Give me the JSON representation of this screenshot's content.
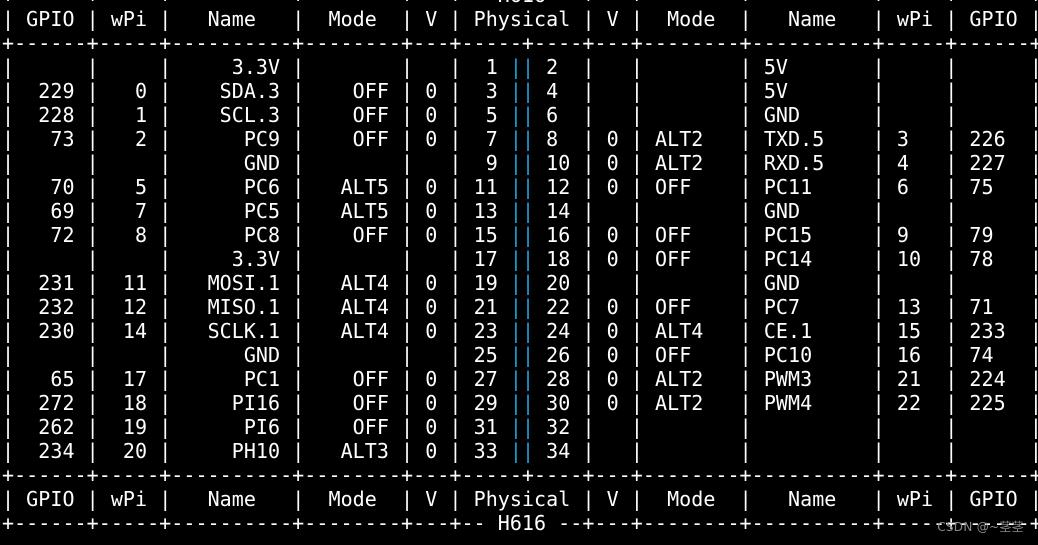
{
  "board": "H616",
  "border": "+------+-----+----------+--------+---+",
  "header": {
    "left": [
      "GPIO",
      "wPi",
      "Name",
      "Mode",
      "V"
    ],
    "physical": "Physical",
    "right": [
      "V",
      "Mode",
      "Name",
      "wPi",
      "GPIO"
    ]
  },
  "rows": [
    {
      "l_gpio": "",
      "l_wpi": "",
      "l_name": "3.3V",
      "l_mode": "",
      "l_v": "",
      "l_pin": "1",
      "r_pin": "2",
      "r_v": "",
      "r_mode": "",
      "r_name": "5V",
      "r_wpi": "",
      "r_gpio": ""
    },
    {
      "l_gpio": "229",
      "l_wpi": "0",
      "l_name": "SDA.3",
      "l_mode": "OFF",
      "l_v": "0",
      "l_pin": "3",
      "r_pin": "4",
      "r_v": "",
      "r_mode": "",
      "r_name": "5V",
      "r_wpi": "",
      "r_gpio": ""
    },
    {
      "l_gpio": "228",
      "l_wpi": "1",
      "l_name": "SCL.3",
      "l_mode": "OFF",
      "l_v": "0",
      "l_pin": "5",
      "r_pin": "6",
      "r_v": "",
      "r_mode": "",
      "r_name": "GND",
      "r_wpi": "",
      "r_gpio": ""
    },
    {
      "l_gpio": "73",
      "l_wpi": "2",
      "l_name": "PC9",
      "l_mode": "OFF",
      "l_v": "0",
      "l_pin": "7",
      "r_pin": "8",
      "r_v": "0",
      "r_mode": "ALT2",
      "r_name": "TXD.5",
      "r_wpi": "3",
      "r_gpio": "226"
    },
    {
      "l_gpio": "",
      "l_wpi": "",
      "l_name": "GND",
      "l_mode": "",
      "l_v": "",
      "l_pin": "9",
      "r_pin": "10",
      "r_v": "0",
      "r_mode": "ALT2",
      "r_name": "RXD.5",
      "r_wpi": "4",
      "r_gpio": "227"
    },
    {
      "l_gpio": "70",
      "l_wpi": "5",
      "l_name": "PC6",
      "l_mode": "ALT5",
      "l_v": "0",
      "l_pin": "11",
      "r_pin": "12",
      "r_v": "0",
      "r_mode": "OFF",
      "r_name": "PC11",
      "r_wpi": "6",
      "r_gpio": "75"
    },
    {
      "l_gpio": "69",
      "l_wpi": "7",
      "l_name": "PC5",
      "l_mode": "ALT5",
      "l_v": "0",
      "l_pin": "13",
      "r_pin": "14",
      "r_v": "",
      "r_mode": "",
      "r_name": "GND",
      "r_wpi": "",
      "r_gpio": ""
    },
    {
      "l_gpio": "72",
      "l_wpi": "8",
      "l_name": "PC8",
      "l_mode": "OFF",
      "l_v": "0",
      "l_pin": "15",
      "r_pin": "16",
      "r_v": "0",
      "r_mode": "OFF",
      "r_name": "PC15",
      "r_wpi": "9",
      "r_gpio": "79"
    },
    {
      "l_gpio": "",
      "l_wpi": "",
      "l_name": "3.3V",
      "l_mode": "",
      "l_v": "",
      "l_pin": "17",
      "r_pin": "18",
      "r_v": "0",
      "r_mode": "OFF",
      "r_name": "PC14",
      "r_wpi": "10",
      "r_gpio": "78"
    },
    {
      "l_gpio": "231",
      "l_wpi": "11",
      "l_name": "MOSI.1",
      "l_mode": "ALT4",
      "l_v": "0",
      "l_pin": "19",
      "r_pin": "20",
      "r_v": "",
      "r_mode": "",
      "r_name": "GND",
      "r_wpi": "",
      "r_gpio": ""
    },
    {
      "l_gpio": "232",
      "l_wpi": "12",
      "l_name": "MISO.1",
      "l_mode": "ALT4",
      "l_v": "0",
      "l_pin": "21",
      "r_pin": "22",
      "r_v": "0",
      "r_mode": "OFF",
      "r_name": "PC7",
      "r_wpi": "13",
      "r_gpio": "71"
    },
    {
      "l_gpio": "230",
      "l_wpi": "14",
      "l_name": "SCLK.1",
      "l_mode": "ALT4",
      "l_v": "0",
      "l_pin": "23",
      "r_pin": "24",
      "r_v": "0",
      "r_mode": "ALT4",
      "r_name": "CE.1",
      "r_wpi": "15",
      "r_gpio": "233"
    },
    {
      "l_gpio": "",
      "l_wpi": "",
      "l_name": "GND",
      "l_mode": "",
      "l_v": "",
      "l_pin": "25",
      "r_pin": "26",
      "r_v": "0",
      "r_mode": "OFF",
      "r_name": "PC10",
      "r_wpi": "16",
      "r_gpio": "74"
    },
    {
      "l_gpio": "65",
      "l_wpi": "17",
      "l_name": "PC1",
      "l_mode": "OFF",
      "l_v": "0",
      "l_pin": "27",
      "r_pin": "28",
      "r_v": "0",
      "r_mode": "ALT2",
      "r_name": "PWM3",
      "r_wpi": "21",
      "r_gpio": "224"
    },
    {
      "l_gpio": "272",
      "l_wpi": "18",
      "l_name": "PI16",
      "l_mode": "OFF",
      "l_v": "0",
      "l_pin": "29",
      "r_pin": "30",
      "r_v": "0",
      "r_mode": "ALT2",
      "r_name": "PWM4",
      "r_wpi": "22",
      "r_gpio": "225"
    },
    {
      "l_gpio": "262",
      "l_wpi": "19",
      "l_name": "PI6",
      "l_mode": "OFF",
      "l_v": "0",
      "l_pin": "31",
      "r_pin": "32",
      "r_v": "",
      "r_mode": "",
      "r_name": "",
      "r_wpi": "",
      "r_gpio": ""
    },
    {
      "l_gpio": "234",
      "l_wpi": "20",
      "l_name": "PH10",
      "l_mode": "ALT3",
      "l_v": "0",
      "l_pin": "33",
      "r_pin": "34",
      "r_v": "",
      "r_mode": "",
      "r_name": "",
      "r_wpi": "",
      "r_gpio": ""
    }
  ],
  "watermark": "CSDN @~茎茎",
  "colors": {
    "background": "#000000",
    "text": "#ffffff",
    "physical_divider": "#1e9bd6",
    "watermark": "#8a8a8a"
  }
}
